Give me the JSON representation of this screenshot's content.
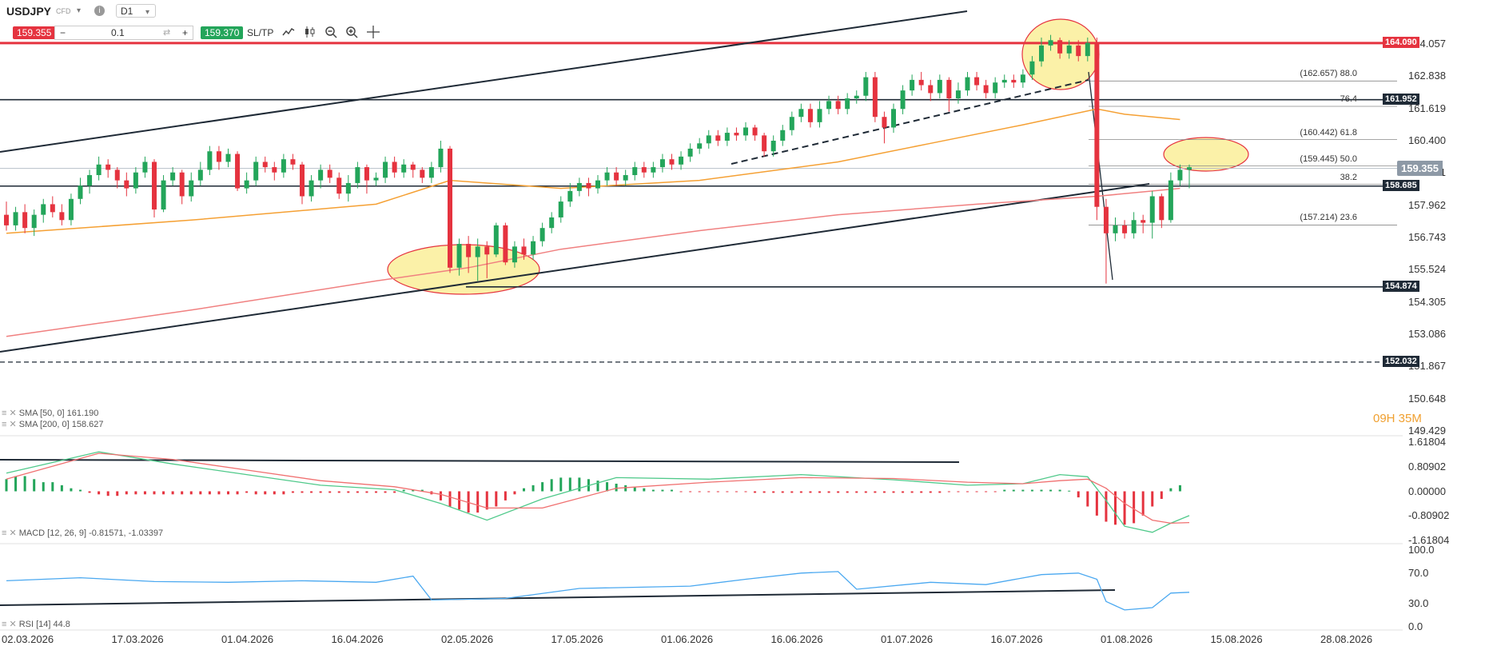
{
  "toolbar": {
    "symbol": "USDJPY",
    "symbol_type": "CFD",
    "info_icon": "info-icon",
    "timeframe": "D1",
    "sell_price": "159.355",
    "minus": "−",
    "quantity": "0.1",
    "plus": "+",
    "buy_price": "159.370",
    "sl_tp": "SL/TP",
    "tools": [
      "line-chart-icon",
      "candlestick-chart-icon",
      "zoom-out-icon",
      "zoom-in-icon",
      "crosshair-icon"
    ]
  },
  "price_axis": {
    "labels": [
      "164.057",
      "162.838",
      "161.619",
      "160.400",
      "159.181",
      "157.962",
      "156.743",
      "155.524",
      "154.305",
      "153.086",
      "151.867",
      "150.648",
      "149.429"
    ],
    "current_price": "159.355",
    "levels": [
      {
        "label": "164.090",
        "color": "#e5333f"
      },
      {
        "label": "161.952",
        "color": "#1f2a36"
      },
      {
        "label": "158.685",
        "color": "#1f2a36"
      },
      {
        "label": "154.874",
        "color": "#1f2a36"
      },
      {
        "label": "152.032",
        "color": "#1f2a36"
      }
    ]
  },
  "fibonacci": [
    {
      "label": "88.0 (162.657)"
    },
    {
      "label": "76.4"
    },
    {
      "label": "61.8 (160.442)"
    },
    {
      "label": "50.0 (159.445)"
    },
    {
      "label": "38.2"
    },
    {
      "label": "23.6 (157.214)"
    }
  ],
  "x_axis": [
    "02.03.2026",
    "17.03.2026",
    "01.04.2026",
    "16.04.2026",
    "02.05.2026",
    "17.05.2026",
    "01.06.2026",
    "16.06.2026",
    "01.07.2026",
    "16.07.2026",
    "01.08.2026",
    "15.08.2026",
    "28.08.2026"
  ],
  "indicators": {
    "sma50": "SMA [50, 0] 161.190",
    "sma200": "SMA [200, 0] 158.627",
    "macd": "MACD [12, 26, 9] -0.81571, -1.03397",
    "rsi": "RSI [14] 44.8"
  },
  "macd_axis": [
    "1.61804",
    "0.80902",
    "0.00000",
    "-0.80902",
    "-1.61804"
  ],
  "rsi_axis": [
    "100.0",
    "70.0",
    "30.0",
    "0.0"
  ],
  "countdown": "09H 35M",
  "colors": {
    "bull": "#23a55a",
    "bear": "#e5333f",
    "sma50": "#f5a033",
    "sma200": "#f08080",
    "rsi": "#4aa8f0",
    "macd_line": "#4fc98a",
    "signal_line": "#f07070",
    "highlight": "#fbf1a8"
  },
  "chart_data": {
    "type": "candlestick",
    "candles": [
      [
        157.6,
        157.2,
        158.1,
        157.0
      ],
      [
        157.2,
        157.7,
        157.9,
        157.0
      ],
      [
        157.7,
        157.1,
        158.0,
        156.9
      ],
      [
        157.1,
        157.6,
        157.8,
        156.8
      ],
      [
        157.6,
        158.0,
        158.2,
        157.3
      ],
      [
        158.0,
        157.7,
        158.3,
        157.5
      ],
      [
        157.7,
        157.4,
        158.0,
        157.2
      ],
      [
        157.4,
        158.2,
        158.4,
        157.2
      ],
      [
        158.2,
        158.7,
        159.0,
        158.0
      ],
      [
        158.7,
        159.1,
        159.3,
        158.4
      ],
      [
        159.1,
        159.5,
        159.8,
        158.9
      ],
      [
        159.5,
        159.3,
        159.7,
        159.0
      ],
      [
        159.3,
        158.9,
        159.4,
        158.6
      ],
      [
        158.9,
        158.6,
        159.2,
        158.3
      ],
      [
        158.6,
        159.2,
        159.4,
        158.4
      ],
      [
        159.2,
        159.6,
        159.8,
        159.0
      ],
      [
        159.6,
        157.8,
        159.7,
        157.5
      ],
      [
        157.8,
        158.9,
        159.1,
        157.7
      ],
      [
        158.9,
        159.2,
        159.4,
        158.7
      ],
      [
        159.2,
        158.3,
        159.3,
        158.0
      ],
      [
        158.3,
        158.9,
        159.2,
        158.1
      ],
      [
        158.9,
        159.3,
        159.6,
        158.7
      ],
      [
        159.3,
        160.0,
        160.2,
        159.1
      ],
      [
        160.0,
        159.6,
        160.2,
        159.3
      ],
      [
        159.6,
        159.9,
        160.1,
        159.4
      ],
      [
        159.9,
        158.6,
        160.0,
        158.5
      ],
      [
        158.6,
        158.9,
        159.2,
        158.4
      ],
      [
        158.9,
        159.6,
        159.8,
        158.7
      ],
      [
        159.6,
        159.4,
        159.8,
        159.2
      ],
      [
        159.4,
        159.2,
        159.6,
        158.9
      ],
      [
        159.2,
        159.7,
        159.9,
        159.0
      ],
      [
        159.7,
        159.5,
        159.9,
        159.3
      ],
      [
        159.5,
        158.3,
        159.6,
        158.0
      ],
      [
        158.3,
        158.9,
        159.1,
        158.1
      ],
      [
        158.9,
        159.3,
        159.5,
        158.6
      ],
      [
        159.3,
        159.0,
        159.5,
        158.8
      ],
      [
        159.0,
        158.4,
        159.2,
        158.2
      ],
      [
        158.4,
        158.8,
        159.1,
        158.1
      ],
      [
        158.8,
        159.4,
        159.6,
        158.6
      ],
      [
        159.4,
        158.9,
        159.5,
        158.4
      ],
      [
        158.9,
        159.0,
        159.2,
        158.7
      ],
      [
        159.0,
        159.6,
        159.8,
        158.8
      ],
      [
        159.6,
        159.2,
        159.8,
        159.0
      ],
      [
        159.2,
        159.5,
        159.7,
        159.0
      ],
      [
        159.5,
        159.3,
        159.6,
        159.0
      ],
      [
        159.3,
        159.0,
        159.4,
        158.8
      ],
      [
        159.0,
        159.4,
        159.6,
        158.8
      ],
      [
        159.4,
        160.1,
        160.4,
        159.2
      ],
      [
        160.1,
        155.6,
        160.2,
        155.4
      ],
      [
        155.6,
        156.5,
        156.7,
        155.3
      ],
      [
        156.5,
        156.0,
        156.8,
        155.4
      ],
      [
        156.0,
        156.4,
        156.7,
        155.1
      ],
      [
        156.4,
        156.1,
        156.6,
        155.2
      ],
      [
        156.1,
        157.2,
        157.3,
        156.0
      ],
      [
        157.2,
        155.8,
        157.3,
        155.7
      ],
      [
        155.8,
        156.4,
        156.6,
        155.6
      ],
      [
        156.4,
        156.1,
        156.7,
        155.9
      ],
      [
        156.1,
        156.6,
        156.8,
        155.9
      ],
      [
        156.6,
        157.1,
        157.3,
        156.4
      ],
      [
        157.1,
        157.5,
        157.7,
        156.9
      ],
      [
        157.5,
        158.1,
        158.3,
        157.3
      ],
      [
        158.1,
        158.5,
        158.8,
        157.9
      ],
      [
        158.5,
        158.8,
        159.0,
        158.3
      ],
      [
        158.8,
        158.6,
        159.0,
        158.3
      ],
      [
        158.6,
        158.9,
        159.1,
        158.4
      ],
      [
        158.9,
        159.2,
        159.4,
        158.7
      ],
      [
        159.2,
        158.9,
        159.4,
        158.7
      ],
      [
        158.9,
        159.1,
        159.3,
        158.7
      ],
      [
        159.1,
        159.4,
        159.6,
        158.9
      ],
      [
        159.4,
        159.2,
        159.6,
        159.0
      ],
      [
        159.2,
        159.4,
        159.6,
        159.0
      ],
      [
        159.4,
        159.7,
        159.9,
        159.2
      ],
      [
        159.7,
        159.5,
        159.9,
        159.3
      ],
      [
        159.5,
        159.8,
        160.0,
        159.3
      ],
      [
        159.8,
        160.1,
        160.3,
        159.6
      ],
      [
        160.1,
        160.3,
        160.5,
        159.9
      ],
      [
        160.3,
        160.6,
        160.8,
        160.1
      ],
      [
        160.6,
        160.4,
        160.8,
        160.2
      ],
      [
        160.4,
        160.7,
        160.9,
        160.2
      ],
      [
        160.7,
        160.6,
        160.9,
        160.4
      ],
      [
        160.6,
        160.9,
        161.1,
        160.4
      ],
      [
        160.9,
        160.6,
        161.0,
        160.4
      ],
      [
        160.6,
        160.0,
        160.7,
        159.8
      ],
      [
        160.0,
        160.4,
        160.6,
        159.8
      ],
      [
        160.4,
        160.8,
        161.0,
        160.2
      ],
      [
        160.8,
        161.3,
        161.5,
        160.6
      ],
      [
        161.3,
        161.6,
        161.8,
        161.1
      ],
      [
        161.6,
        161.1,
        161.8,
        160.9
      ],
      [
        161.1,
        161.6,
        161.9,
        160.9
      ],
      [
        161.6,
        161.9,
        162.1,
        161.4
      ],
      [
        161.9,
        161.6,
        162.1,
        161.4
      ],
      [
        161.6,
        162.0,
        162.2,
        161.4
      ],
      [
        162.0,
        162.1,
        162.3,
        161.8
      ],
      [
        162.1,
        162.8,
        163.0,
        161.9
      ],
      [
        162.8,
        161.3,
        163.0,
        161.1
      ],
      [
        161.3,
        160.9,
        161.5,
        160.3
      ],
      [
        160.9,
        161.6,
        161.8,
        160.7
      ],
      [
        161.6,
        162.3,
        162.5,
        161.4
      ],
      [
        162.3,
        162.7,
        162.9,
        162.1
      ],
      [
        162.7,
        162.5,
        163.0,
        162.3
      ],
      [
        162.5,
        162.2,
        162.7,
        161.9
      ],
      [
        162.2,
        162.7,
        162.9,
        162.0
      ],
      [
        162.7,
        162.0,
        162.8,
        161.5
      ],
      [
        162.0,
        162.3,
        162.6,
        161.8
      ],
      [
        162.3,
        162.8,
        163.0,
        162.1
      ],
      [
        162.8,
        162.5,
        163.0,
        162.3
      ],
      [
        162.5,
        162.2,
        162.7,
        162.0
      ],
      [
        162.2,
        162.6,
        162.8,
        162.0
      ],
      [
        162.6,
        162.7,
        162.9,
        162.4
      ],
      [
        162.7,
        162.6,
        162.9,
        162.4
      ],
      [
        162.6,
        162.9,
        163.1,
        162.4
      ],
      [
        162.9,
        163.4,
        163.6,
        162.7
      ],
      [
        163.4,
        164.0,
        164.3,
        163.2
      ],
      [
        164.0,
        164.2,
        164.4,
        163.8
      ],
      [
        164.2,
        163.7,
        164.3,
        163.5
      ],
      [
        163.7,
        164.0,
        164.2,
        163.5
      ],
      [
        164.0,
        163.6,
        164.2,
        163.4
      ],
      [
        163.6,
        164.1,
        164.3,
        163.4
      ],
      [
        164.1,
        157.9,
        164.3,
        157.4
      ],
      [
        157.9,
        156.9,
        158.2,
        155.0
      ],
      [
        156.9,
        157.2,
        157.5,
        156.6
      ],
      [
        157.2,
        156.9,
        157.4,
        156.7
      ],
      [
        156.9,
        157.4,
        157.7,
        156.7
      ],
      [
        157.4,
        157.3,
        157.6,
        156.9
      ],
      [
        157.3,
        158.3,
        158.5,
        156.7
      ],
      [
        158.3,
        157.4,
        158.4,
        157.1
      ],
      [
        157.4,
        158.9,
        159.2,
        157.3
      ],
      [
        158.9,
        159.3,
        159.5,
        158.7
      ],
      [
        159.3,
        159.4,
        159.5,
        158.6
      ]
    ],
    "sma50": [
      [
        0,
        156.9
      ],
      [
        20,
        157.4
      ],
      [
        40,
        158.0
      ],
      [
        48,
        158.9
      ],
      [
        60,
        158.6
      ],
      [
        75,
        158.9
      ],
      [
        90,
        159.6
      ],
      [
        100,
        160.3
      ],
      [
        110,
        161.0
      ],
      [
        118,
        161.6
      ],
      [
        121,
        161.4
      ],
      [
        127,
        161.2
      ]
    ],
    "sma200": [
      [
        0,
        153.0
      ],
      [
        20,
        154.0
      ],
      [
        40,
        155.1
      ],
      [
        50,
        155.6
      ],
      [
        60,
        156.3
      ],
      [
        75,
        157.0
      ],
      [
        90,
        157.6
      ],
      [
        105,
        158.0
      ],
      [
        118,
        158.3
      ],
      [
        127,
        158.6
      ]
    ],
    "rsi": [
      [
        0,
        60
      ],
      [
        8,
        64
      ],
      [
        16,
        59
      ],
      [
        24,
        58
      ],
      [
        32,
        60
      ],
      [
        40,
        58
      ],
      [
        44,
        66
      ],
      [
        46,
        35
      ],
      [
        54,
        37
      ],
      [
        62,
        50
      ],
      [
        74,
        53
      ],
      [
        80,
        62
      ],
      [
        86,
        70
      ],
      [
        90,
        72
      ],
      [
        92,
        49
      ],
      [
        100,
        58
      ],
      [
        106,
        55
      ],
      [
        112,
        68
      ],
      [
        116,
        70
      ],
      [
        118,
        62
      ],
      [
        119,
        33
      ],
      [
        121,
        22
      ],
      [
        124,
        25
      ],
      [
        126,
        44
      ],
      [
        128,
        45
      ]
    ],
    "macd_line": [
      [
        0,
        0.6
      ],
      [
        10,
        1.3
      ],
      [
        18,
        0.9
      ],
      [
        26,
        0.55
      ],
      [
        34,
        0.2
      ],
      [
        42,
        0.05
      ],
      [
        47,
        -0.4
      ],
      [
        52,
        -0.95
      ],
      [
        58,
        -0.25
      ],
      [
        66,
        0.45
      ],
      [
        76,
        0.4
      ],
      [
        86,
        0.55
      ],
      [
        96,
        0.38
      ],
      [
        104,
        0.2
      ],
      [
        110,
        0.25
      ],
      [
        114,
        0.55
      ],
      [
        117,
        0.48
      ],
      [
        119,
        -0.3
      ],
      [
        121,
        -1.15
      ],
      [
        124,
        -1.35
      ],
      [
        126,
        -1.05
      ],
      [
        128,
        -0.8
      ]
    ],
    "signal_line": [
      [
        0,
        0.4
      ],
      [
        10,
        1.25
      ],
      [
        18,
        1.05
      ],
      [
        26,
        0.7
      ],
      [
        34,
        0.35
      ],
      [
        42,
        0.15
      ],
      [
        47,
        -0.1
      ],
      [
        52,
        -0.55
      ],
      [
        58,
        -0.55
      ],
      [
        66,
        0.1
      ],
      [
        76,
        0.3
      ],
      [
        86,
        0.45
      ],
      [
        96,
        0.42
      ],
      [
        104,
        0.3
      ],
      [
        110,
        0.25
      ],
      [
        114,
        0.35
      ],
      [
        117,
        0.4
      ],
      [
        119,
        0.1
      ],
      [
        121,
        -0.4
      ],
      [
        124,
        -0.95
      ],
      [
        126,
        -1.05
      ],
      [
        128,
        -1.03
      ]
    ],
    "macd_hist": [
      0.4,
      0.5,
      0.5,
      0.4,
      0.3,
      0.3,
      0.2,
      0.1,
      0.05,
      -0.05,
      -0.1,
      -0.15,
      -0.15,
      -0.1,
      -0.1,
      -0.1,
      -0.1,
      -0.1,
      -0.1,
      -0.1,
      -0.1,
      -0.1,
      -0.1,
      -0.1,
      -0.1,
      -0.1,
      -0.05,
      -0.1,
      -0.1,
      -0.1,
      -0.1,
      -0.05,
      -0.05,
      -0.05,
      -0.05,
      -0.05,
      -0.05,
      -0.05,
      -0.05,
      -0.05,
      -0.05,
      -0.05,
      -0.05,
      0.05,
      0.05,
      0.05,
      -0.1,
      -0.3,
      -0.5,
      -0.6,
      -0.7,
      -0.7,
      -0.6,
      -0.5,
      -0.3,
      -0.1,
      0.1,
      0.2,
      0.3,
      0.4,
      0.45,
      0.45,
      0.45,
      0.4,
      0.35,
      0.3,
      0.25,
      0.2,
      0.15,
      0.1,
      0.05,
      0.05,
      0.05,
      -0.02,
      -0.02,
      -0.02,
      -0.02,
      -0.02,
      -0.02,
      -0.02,
      -0.02,
      -0.05,
      -0.05,
      -0.05,
      -0.05,
      -0.05,
      -0.05,
      -0.05,
      -0.05,
      -0.05,
      -0.05,
      -0.05,
      -0.05,
      -0.05,
      -0.05,
      -0.05,
      -0.05,
      -0.05,
      -0.05,
      -0.05,
      -0.05,
      -0.05,
      -0.02,
      -0.02,
      -0.02,
      -0.02,
      -0.02,
      -0.02,
      0.05,
      0.05,
      0.05,
      0.05,
      0.05,
      0.05,
      0.05,
      0.02,
      -0.2,
      -0.5,
      -0.8,
      -1.0,
      -1.1,
      -1.1,
      -1.05,
      -0.8,
      -0.5,
      -0.25,
      0.1,
      0.2
    ]
  }
}
